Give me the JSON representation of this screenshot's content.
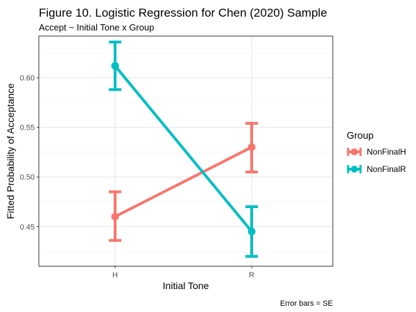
{
  "chart_data": {
    "type": "line",
    "title": "Figure 10. Logistic Regression for Chen (2020) Sample",
    "subtitle": "Accept ~ Initial Tone x Group",
    "xlabel": "Initial Tone",
    "ylabel": "Fitted Probability of Acceptance",
    "caption": "Error bars = SE",
    "categories": [
      "H",
      "R"
    ],
    "ylim": [
      0.41,
      0.642
    ],
    "yticks": [
      0.45,
      0.5,
      0.55,
      0.6
    ],
    "ytick_labels": [
      "0.45",
      "0.50",
      "0.55",
      "0.60"
    ],
    "grid": true,
    "legend": {
      "title": "Group",
      "position": "right"
    },
    "series": [
      {
        "name": "NonFinalH",
        "color": "#F8766D",
        "values": [
          0.46,
          0.53
        ],
        "se_low": [
          0.436,
          0.505
        ],
        "se_high": [
          0.485,
          0.554
        ]
      },
      {
        "name": "NonFinalR",
        "color": "#00BFC4",
        "values": [
          0.612,
          0.445
        ],
        "se_low": [
          0.588,
          0.42
        ],
        "se_high": [
          0.636,
          0.47
        ]
      }
    ]
  }
}
